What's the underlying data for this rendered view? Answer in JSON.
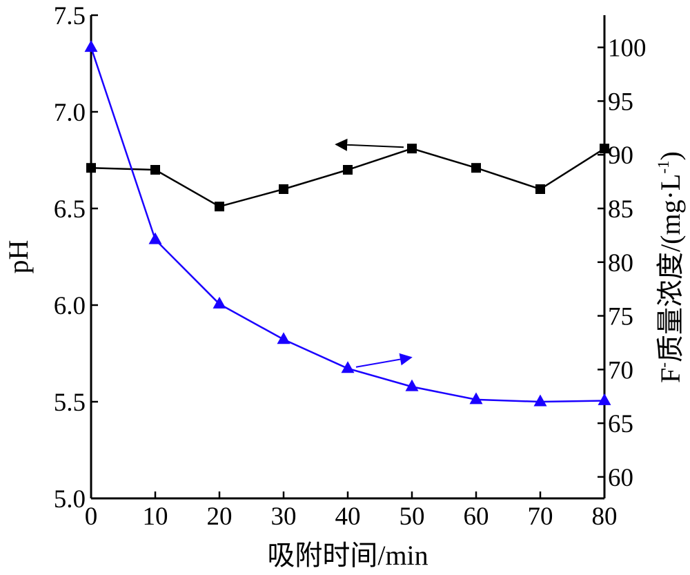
{
  "chart_data": {
    "type": "line",
    "xlabel": "吸附时间/min",
    "ylabel_left": "pH",
    "ylabel_right": "F质量浓度/(mg·L",
    "ylabel_right_sup_minus": "-",
    "ylabel_right_sup_unit": "-1",
    "ylabel_right_close": ")",
    "xlim": [
      0,
      80
    ],
    "ylim_left": [
      5.0,
      7.5
    ],
    "ylim_right": [
      58,
      103
    ],
    "x_ticks": [
      "0",
      "10",
      "20",
      "30",
      "40",
      "50",
      "60",
      "70",
      "80"
    ],
    "y_left_ticks": [
      "5.0",
      "5.5",
      "6.0",
      "6.5",
      "7.0",
      "7.5"
    ],
    "y_right_ticks": [
      "60",
      "65",
      "70",
      "75",
      "80",
      "85",
      "90",
      "95",
      "100"
    ],
    "grid": false,
    "series": [
      {
        "axis": "left",
        "color": "#000000",
        "marker": "square",
        "x": [
          0,
          10,
          20,
          30,
          40,
          50,
          60,
          70,
          80
        ],
        "values": [
          6.71,
          6.7,
          6.51,
          6.6,
          6.7,
          6.81,
          6.71,
          6.6,
          6.81
        ]
      },
      {
        "axis": "right",
        "color": "#1a00ff",
        "marker": "triangle",
        "x": [
          0,
          10,
          20,
          30,
          40,
          50,
          60,
          70,
          80
        ],
        "values": [
          100.0,
          82.1,
          76.1,
          72.8,
          70.1,
          68.4,
          67.2,
          67.0,
          67.1
        ]
      }
    ],
    "annotations": [
      {
        "type": "arrow",
        "points_to": "left-axis",
        "series": 0
      },
      {
        "type": "arrow",
        "points_to": "right-axis",
        "series": 1
      }
    ]
  }
}
